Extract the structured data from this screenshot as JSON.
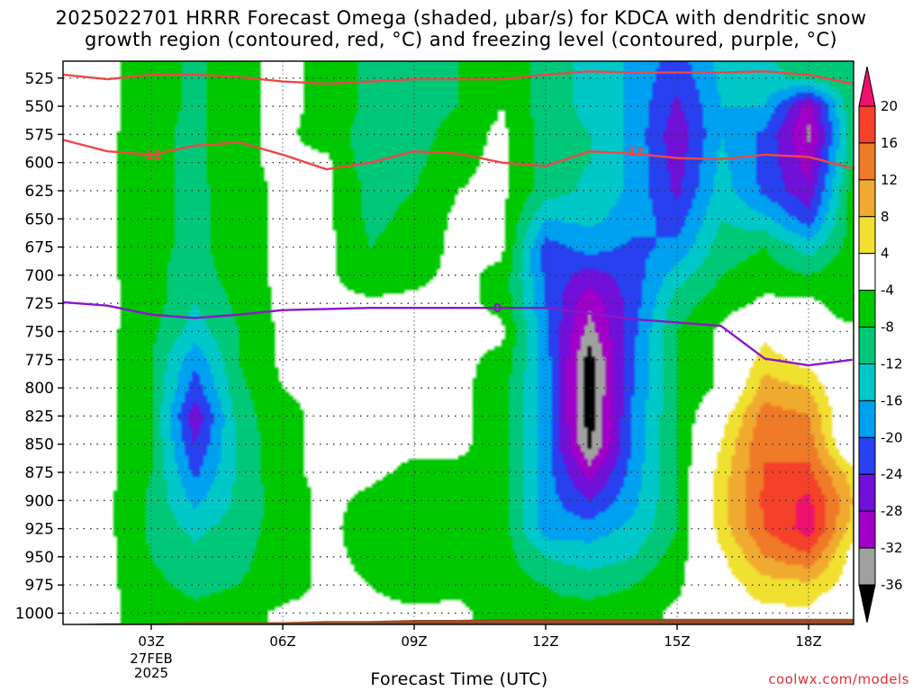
{
  "title": {
    "line1": "2025022701 HRRR Forecast Omega (shaded, μbar/s) for KDCA with dendritic snow",
    "line2": "growth region (contoured, red, °C) and freezing level (contoured, purple, °C)"
  },
  "x_axis": {
    "label": "Forecast Time (UTC)",
    "ticks": [
      "03Z",
      "06Z",
      "09Z",
      "12Z",
      "15Z",
      "18Z"
    ],
    "date_line1": "27FEB",
    "date_line2": "2025"
  },
  "y_axis": {
    "ticks": [
      "525",
      "550",
      "575",
      "600",
      "625",
      "650",
      "675",
      "700",
      "725",
      "750",
      "775",
      "800",
      "825",
      "850",
      "875",
      "900",
      "925",
      "950",
      "975",
      "1000"
    ]
  },
  "colorbar": {
    "labels": [
      "20",
      "16",
      "12",
      "8",
      "4",
      "-4",
      "-8",
      "-12",
      "-16",
      "-20",
      "-24",
      "-28",
      "-32",
      "-36"
    ],
    "colors": [
      "#f0106e",
      "#f5402a",
      "#ef7a28",
      "#f0aa30",
      "#f0e030",
      "#ffffff",
      "#00c800",
      "#00c878",
      "#00c8c8",
      "#00a0f0",
      "#2840f0",
      "#7010d8",
      "#a000c8",
      "#a0a0a0",
      "#000000"
    ]
  },
  "credit": "coolwx.com/models",
  "chart_data": {
    "type": "heatmap",
    "x": [
      "01Z",
      "02Z",
      "03Z",
      "04Z",
      "05Z",
      "06Z",
      "07Z",
      "08Z",
      "09Z",
      "10Z",
      "11Z",
      "12Z",
      "13Z",
      "14Z",
      "15Z",
      "16Z",
      "17Z",
      "18Z",
      "19Z"
    ],
    "y": [
      500,
      525,
      550,
      575,
      600,
      625,
      650,
      675,
      700,
      725,
      750,
      775,
      800,
      825,
      850,
      875,
      900,
      925,
      950,
      975,
      1000
    ],
    "z": [
      [
        -3,
        -3,
        -6,
        -9,
        -5,
        -3,
        -5,
        -9,
        -10,
        -8,
        -4,
        -10,
        -13,
        -17,
        -21,
        -15,
        -12,
        -10,
        -8
      ],
      [
        -3,
        -3,
        -6,
        -9,
        -5,
        -3,
        -5,
        -9,
        -10,
        -8,
        -4,
        -10,
        -13,
        -17,
        -23,
        -15,
        -13,
        -11,
        -8
      ],
      [
        -3,
        -3,
        -6,
        -9,
        -5,
        -3,
        -5,
        -9,
        -10,
        -8,
        -4,
        -10,
        -13,
        -17,
        -25,
        -16,
        -16,
        -30,
        -8
      ],
      [
        -3,
        -3,
        -7,
        -9,
        -5,
        -3,
        -6,
        -10,
        -10,
        -6,
        -3,
        -10,
        -12,
        -17,
        -27,
        -16,
        -21,
        -33,
        -8
      ],
      [
        -3,
        -3,
        -7,
        -9,
        -5,
        -3,
        -3,
        -11,
        -9,
        -5,
        -3,
        -10,
        -12,
        -17,
        -26,
        -15,
        -21,
        -30,
        -8
      ],
      [
        -3,
        -3,
        -7,
        -9,
        -6,
        -3,
        -3,
        -9,
        -8,
        -4,
        -3,
        -10,
        -13,
        -17,
        -25,
        -14,
        -21,
        -27,
        -6
      ],
      [
        -3,
        -3,
        -7,
        -9,
        -6,
        -3,
        -3,
        -9,
        -7,
        -3,
        -3,
        -16,
        -15,
        -18,
        -22,
        -12,
        -15,
        -22,
        -6
      ],
      [
        -3,
        -3,
        -7,
        -9,
        -6,
        -3,
        -3,
        -8,
        -6,
        -3,
        -3,
        -22,
        -18,
        -21,
        -19,
        -10,
        -8,
        -14,
        -6
      ],
      [
        -3,
        -3,
        -7,
        -10,
        -6,
        -3,
        -3,
        -7,
        -5,
        -3,
        -5,
        -21,
        -26,
        -22,
        -14,
        -8,
        -6,
        -8,
        -5
      ],
      [
        -3,
        -3,
        -6,
        -12,
        -7,
        -3,
        -3,
        -3,
        -3,
        -3,
        -5,
        -20,
        -31,
        -22,
        -10,
        -6,
        -3,
        -3,
        -6
      ],
      [
        -3,
        -3,
        -7,
        -14,
        -8,
        -3,
        -3,
        -3,
        -3,
        -3,
        -3,
        -19,
        -34,
        -21,
        -8,
        -3,
        3,
        -3,
        -3
      ],
      [
        -3,
        -3,
        -8,
        -19,
        -8,
        -3,
        -3,
        -3,
        -3,
        -3,
        -5,
        -18,
        -38,
        -20,
        -8,
        -3,
        6,
        2,
        -3
      ],
      [
        -3,
        -3,
        -8,
        -22,
        -9,
        -4,
        -3,
        -3,
        -3,
        -3,
        -6,
        -18,
        -38,
        -20,
        -8,
        -3,
        10,
        8,
        -3
      ],
      [
        -3,
        -3,
        -8,
        -27,
        -10,
        -5,
        -3,
        -3,
        -3,
        -3,
        -6,
        -18,
        -38,
        -19,
        -8,
        2,
        14,
        12,
        -3
      ],
      [
        -3,
        -3,
        -8,
        -24,
        -11,
        -5,
        -3,
        -3,
        -3,
        -3,
        -6,
        -18,
        -37,
        -19,
        -8,
        4,
        16,
        14,
        -3
      ],
      [
        -3,
        -3,
        -8,
        -21,
        -11,
        -5,
        -3,
        -3,
        -5,
        -5,
        -6,
        -18,
        -30,
        -18,
        -8,
        6,
        16,
        17,
        6
      ],
      [
        -3,
        -3,
        -9,
        -17,
        -11,
        -6,
        -3,
        -5,
        -8,
        -6,
        -6,
        -18,
        -24,
        -17,
        -8,
        6,
        17,
        21,
        8
      ],
      [
        -3,
        -3,
        -9,
        -13,
        -10,
        -6,
        -3,
        -6,
        -8,
        -7,
        -6,
        -18,
        -18,
        -15,
        -8,
        6,
        16,
        22,
        6
      ],
      [
        -3,
        -3,
        -8,
        -11,
        -9,
        -6,
        -3,
        -5,
        -7,
        -7,
        -6,
        -12,
        -14,
        -12,
        -6,
        3,
        12,
        15,
        2
      ],
      [
        -3,
        -3,
        -7,
        -9,
        -8,
        -6,
        -3,
        -4,
        -6,
        -5,
        -6,
        -8,
        -10,
        -8,
        -5,
        2,
        6,
        7,
        2
      ],
      [
        -3,
        -3,
        -6,
        -7,
        -6,
        -3,
        -3,
        -3,
        -3,
        -3,
        -6,
        -7,
        -6,
        -6,
        -3,
        2,
        3,
        3,
        -3
      ]
    ],
    "contours": {
      "dendritic_snow_growth_top": {
        "label": "",
        "x": [
          "01Z",
          "02Z",
          "03Z",
          "04Z",
          "05Z",
          "06Z",
          "07Z",
          "08Z",
          "09Z",
          "10Z",
          "11Z",
          "12Z",
          "13Z",
          "14Z",
          "15Z",
          "16Z",
          "17Z",
          "18Z",
          "19Z"
        ],
        "p": [
          522,
          526,
          522,
          522,
          524,
          528,
          530,
          528,
          526,
          526,
          526,
          522,
          519,
          520,
          520,
          520,
          519,
          522,
          530
        ]
      },
      "minus12": {
        "label": "-12",
        "x": [
          "01Z",
          "02Z",
          "03Z",
          "04Z",
          "05Z",
          "06Z",
          "07Z",
          "08Z",
          "09Z",
          "10Z",
          "11Z",
          "12Z",
          "13Z",
          "14Z",
          "15Z",
          "16Z",
          "17Z",
          "18Z",
          "19Z"
        ],
        "p": [
          580,
          590,
          593,
          585,
          582,
          593,
          606,
          600,
          590,
          592,
          600,
          603,
          590,
          592,
          596,
          597,
          593,
          595,
          605
        ]
      },
      "freezing_level": {
        "label": "0",
        "x": [
          "01Z",
          "02Z",
          "03Z",
          "04Z",
          "05Z",
          "06Z",
          "07Z",
          "08Z",
          "09Z",
          "10Z",
          "11Z",
          "12Z",
          "13Z",
          "14Z",
          "15Z",
          "16Z",
          "17Z",
          "18Z",
          "19Z"
        ],
        "p": [
          724,
          727,
          735,
          738,
          735,
          731,
          730,
          729,
          729,
          729,
          729,
          729,
          734,
          739,
          742,
          745,
          774,
          780,
          775
        ]
      }
    },
    "terrain_pressure": [
      1010,
      1009,
      1009,
      1008,
      1008,
      1008,
      1007,
      1007,
      1006,
      1006,
      1005,
      1005,
      1005,
      1005,
      1005,
      1005,
      1005,
      1005,
      1005
    ],
    "xlabel": "Forecast Time (UTC)",
    "ylim": [
      1010,
      510
    ],
    "grid": true
  }
}
